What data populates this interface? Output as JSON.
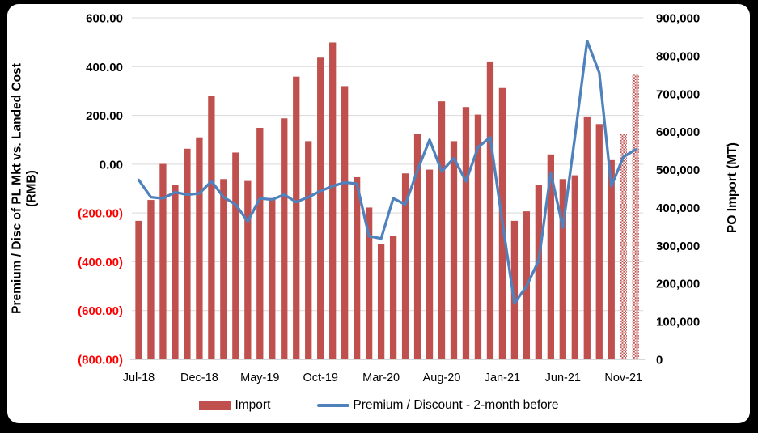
{
  "chart_data": {
    "type": "combo-bar-line",
    "title": "",
    "categories": [
      "Jul-18",
      "Aug-18",
      "Sep-18",
      "Oct-18",
      "Nov-18",
      "Dec-18",
      "Jan-19",
      "Feb-19",
      "Mar-19",
      "Apr-19",
      "May-19",
      "Jun-19",
      "Jul-19",
      "Aug-19",
      "Sep-19",
      "Oct-19",
      "Nov-19",
      "Dec-19",
      "Jan-20",
      "Feb-20",
      "Mar-20",
      "Apr-20",
      "May-20",
      "Jun-20",
      "Jul-20",
      "Aug-20",
      "Sep-20",
      "Oct-20",
      "Nov-20",
      "Dec-20",
      "Jan-21",
      "Feb-21",
      "Mar-21",
      "Apr-21",
      "May-21",
      "Jun-21",
      "Jul-21",
      "Aug-21",
      "Sep-21",
      "Oct-21",
      "Nov-21",
      "Dec-21"
    ],
    "x_tick_labels": [
      "Jul-18",
      "Dec-18",
      "May-19",
      "Oct-19",
      "Mar-20",
      "Aug-20",
      "Jan-21",
      "Jun-21",
      "Nov-21"
    ],
    "x_tick_every": 5,
    "series": [
      {
        "name": "Import",
        "type": "bar",
        "axis": "right",
        "color": "#C0504D",
        "values": [
          365000,
          420000,
          515000,
          460000,
          555000,
          585000,
          695000,
          475000,
          545000,
          470000,
          610000,
          425000,
          635000,
          745000,
          575000,
          795000,
          835000,
          720000,
          480000,
          400000,
          305000,
          325000,
          490000,
          595000,
          500000,
          680000,
          575000,
          665000,
          645000,
          785000,
          715000,
          365000,
          390000,
          460000,
          540000,
          475000,
          485000,
          640000,
          620000,
          525000,
          595000,
          750000
        ],
        "pattern_fill_categories": [
          "Nov-21",
          "Dec-21"
        ]
      },
      {
        "name": "Premium / Discount - 2-month before",
        "type": "line",
        "axis": "left",
        "color": "#4F81BD",
        "values": [
          -65,
          -135,
          -140,
          -115,
          -125,
          -120,
          -70,
          -135,
          -165,
          -235,
          -140,
          -145,
          -125,
          -155,
          -135,
          -110,
          -90,
          -75,
          -80,
          -295,
          -305,
          -140,
          -165,
          -25,
          100,
          -30,
          25,
          -70,
          70,
          110,
          -235,
          -570,
          -500,
          -395,
          -35,
          -260,
          115,
          505,
          375,
          -90,
          30,
          60
        ]
      }
    ],
    "left_axis": {
      "title": "Premium / Disc of PL Mkt vs. Landed Cost (RMB)",
      "title_lines": [
        "Premium / Disc of PL Mkt vs. Landed Cost",
        "(RMB)"
      ],
      "min": -800,
      "max": 600,
      "step": 200,
      "tick_values": [
        600,
        400,
        200,
        0,
        -200,
        -400,
        -600,
        -800
      ],
      "tick_labels": [
        "600.00",
        "400.00",
        "200.00",
        "0.00",
        "(200.00)",
        "(400.00)",
        "(600.00)",
        "(800.00)"
      ],
      "negative_color": "#FF0000"
    },
    "right_axis": {
      "title": "PO Import (MT)",
      "min": 0,
      "max": 900000,
      "step": 100000,
      "tick_values": [
        900000,
        800000,
        700000,
        600000,
        500000,
        400000,
        300000,
        200000,
        100000,
        0
      ],
      "tick_labels": [
        "900,000",
        "800,000",
        "700,000",
        "600,000",
        "500,000",
        "400,000",
        "300,000",
        "200,000",
        "100,000",
        "0"
      ]
    },
    "legend": [
      {
        "label": "Import",
        "swatch": "bar",
        "color": "#C0504D"
      },
      {
        "label": "Premium / Discount - 2-month before",
        "swatch": "line",
        "color": "#4F81BD"
      }
    ],
    "grid": {
      "show": true,
      "color": "#D9D9D9",
      "baseline_color": "#BFBFBF"
    }
  }
}
